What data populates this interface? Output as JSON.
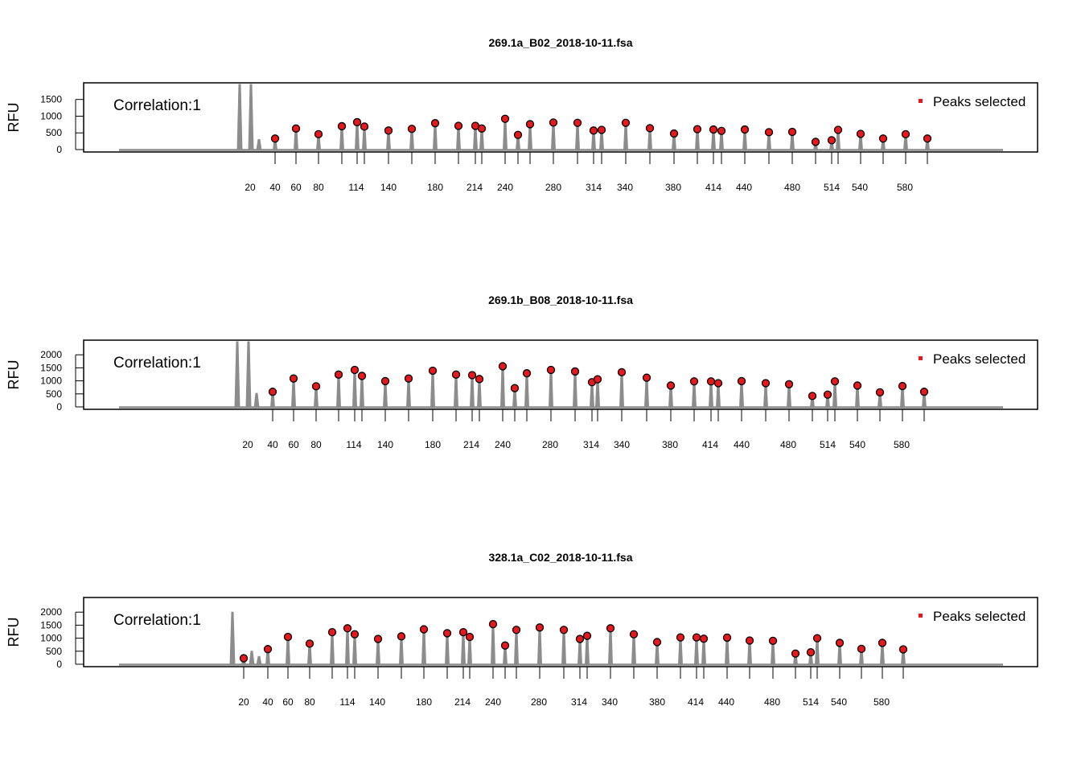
{
  "chart_data": [
    {
      "type": "line",
      "title": "269.1a_B02_2018-10-11.fsa",
      "ylabel": "RFU",
      "ylim": [
        0,
        1950
      ],
      "yticks": [
        0,
        500,
        1000,
        1500
      ],
      "xticks": [
        "20",
        "40",
        "60",
        "80",
        "114",
        "140",
        "180",
        "214",
        "240",
        "280",
        "314",
        "340",
        "380",
        "414",
        "440",
        "480",
        "514",
        "540",
        "580"
      ],
      "annotation": "Correlation:1",
      "legend": {
        "label": "Peaks selected",
        "color": "#e8191d",
        "position": "top-right"
      },
      "trace_color": "#8c8c8c",
      "primer_peaks": [
        1950,
        1950,
        300
      ],
      "peaks": [
        {
          "label": "20",
          "rfu": 330
        },
        {
          "label": "40",
          "rfu": 630
        },
        {
          "label": "60",
          "rfu": 460
        },
        {
          "label": "80",
          "rfu": 700
        },
        {
          "label": "100",
          "rfu": 820
        },
        {
          "label": "114",
          "rfu": 690
        },
        {
          "label": "120",
          "rfu": 570
        },
        {
          "label": "140",
          "rfu": 620
        },
        {
          "label": "160",
          "rfu": 790
        },
        {
          "label": "180",
          "rfu": 710
        },
        {
          "label": "200",
          "rfu": 710
        },
        {
          "label": "214",
          "rfu": 630
        },
        {
          "label": "220",
          "rfu": 920
        },
        {
          "label": "240",
          "rfu": 440
        },
        {
          "label": "250",
          "rfu": 760
        },
        {
          "label": "260",
          "rfu": 810
        },
        {
          "label": "280",
          "rfu": 800
        },
        {
          "label": "300",
          "rfu": 570
        },
        {
          "label": "314",
          "rfu": 590
        },
        {
          "label": "320",
          "rfu": 800
        },
        {
          "label": "340",
          "rfu": 640
        },
        {
          "label": "360",
          "rfu": 480
        },
        {
          "label": "380",
          "rfu": 610
        },
        {
          "label": "400",
          "rfu": 600
        },
        {
          "label": "414",
          "rfu": 560
        },
        {
          "label": "420",
          "rfu": 600
        },
        {
          "label": "440",
          "rfu": 520
        },
        {
          "label": "460",
          "rfu": 530
        },
        {
          "label": "480",
          "rfu": 230
        },
        {
          "label": "500",
          "rfu": 280
        },
        {
          "label": "514",
          "rfu": 590
        },
        {
          "label": "520",
          "rfu": 470
        },
        {
          "label": "540",
          "rfu": 330
        },
        {
          "label": "560",
          "rfu": 460
        },
        {
          "label": "580",
          "rfu": 330
        }
      ]
    },
    {
      "type": "line",
      "title": "269.1b_B08_2018-10-11.fsa",
      "ylabel": "RFU",
      "ylim": [
        0,
        2500
      ],
      "yticks": [
        0,
        500,
        1000,
        1500,
        2000
      ],
      "xticks": [
        "20",
        "40",
        "60",
        "80",
        "114",
        "140",
        "180",
        "214",
        "240",
        "280",
        "314",
        "340",
        "380",
        "414",
        "440",
        "480",
        "514",
        "540",
        "580"
      ],
      "annotation": "Correlation:1",
      "legend": {
        "label": "Peaks selected",
        "color": "#e8191d",
        "position": "top-right"
      },
      "trace_color": "#8c8c8c",
      "primer_peaks": [
        2500,
        2500,
        520
      ],
      "peaks": [
        {
          "label": "20",
          "rfu": 580
        },
        {
          "label": "40",
          "rfu": 1090
        },
        {
          "label": "60",
          "rfu": 790
        },
        {
          "label": "80",
          "rfu": 1240
        },
        {
          "label": "100",
          "rfu": 1420
        },
        {
          "label": "114",
          "rfu": 1190
        },
        {
          "label": "120",
          "rfu": 990
        },
        {
          "label": "140",
          "rfu": 1090
        },
        {
          "label": "160",
          "rfu": 1390
        },
        {
          "label": "180",
          "rfu": 1240
        },
        {
          "label": "200",
          "rfu": 1220
        },
        {
          "label": "214",
          "rfu": 1070
        },
        {
          "label": "220",
          "rfu": 1560
        },
        {
          "label": "240",
          "rfu": 720
        },
        {
          "label": "250",
          "rfu": 1290
        },
        {
          "label": "260",
          "rfu": 1420
        },
        {
          "label": "280",
          "rfu": 1360
        },
        {
          "label": "300",
          "rfu": 950
        },
        {
          "label": "314",
          "rfu": 1060
        },
        {
          "label": "320",
          "rfu": 1330
        },
        {
          "label": "340",
          "rfu": 1120
        },
        {
          "label": "360",
          "rfu": 820
        },
        {
          "label": "380",
          "rfu": 980
        },
        {
          "label": "400",
          "rfu": 980
        },
        {
          "label": "414",
          "rfu": 910
        },
        {
          "label": "420",
          "rfu": 990
        },
        {
          "label": "440",
          "rfu": 910
        },
        {
          "label": "460",
          "rfu": 870
        },
        {
          "label": "480",
          "rfu": 420
        },
        {
          "label": "500",
          "rfu": 470
        },
        {
          "label": "514",
          "rfu": 980
        },
        {
          "label": "520",
          "rfu": 820
        },
        {
          "label": "540",
          "rfu": 560
        },
        {
          "label": "560",
          "rfu": 800
        },
        {
          "label": "580",
          "rfu": 580
        }
      ]
    },
    {
      "type": "line",
      "title": "328.1a_C02_2018-10-11.fsa",
      "ylabel": "RFU",
      "ylim": [
        0,
        2500
      ],
      "yticks": [
        0,
        500,
        1000,
        1500,
        2000
      ],
      "xticks": [
        "20",
        "40",
        "60",
        "80",
        "114",
        "140",
        "180",
        "214",
        "240",
        "280",
        "314",
        "340",
        "380",
        "414",
        "440",
        "480",
        "514",
        "540",
        "580"
      ],
      "annotation": "Correlation:1",
      "legend": {
        "label": "Peaks selected",
        "color": "#e8191d",
        "position": "top-right"
      },
      "trace_color": "#8c8c8c",
      "primer_peaks": [
        2000,
        500,
        300
      ],
      "peaks": [
        {
          "label": "20",
          "rfu": 230
        },
        {
          "label": "40",
          "rfu": 580
        },
        {
          "label": "60",
          "rfu": 1050
        },
        {
          "label": "80",
          "rfu": 790
        },
        {
          "label": "100",
          "rfu": 1230
        },
        {
          "label": "114",
          "rfu": 1380
        },
        {
          "label": "120",
          "rfu": 1150
        },
        {
          "label": "140",
          "rfu": 970
        },
        {
          "label": "160",
          "rfu": 1070
        },
        {
          "label": "180",
          "rfu": 1340
        },
        {
          "label": "200",
          "rfu": 1190
        },
        {
          "label": "214",
          "rfu": 1230
        },
        {
          "label": "220",
          "rfu": 1050
        },
        {
          "label": "240",
          "rfu": 1540
        },
        {
          "label": "250",
          "rfu": 720
        },
        {
          "label": "260",
          "rfu": 1320
        },
        {
          "label": "280",
          "rfu": 1410
        },
        {
          "label": "300",
          "rfu": 1320
        },
        {
          "label": "314",
          "rfu": 970
        },
        {
          "label": "320",
          "rfu": 1090
        },
        {
          "label": "340",
          "rfu": 1380
        },
        {
          "label": "360",
          "rfu": 1150
        },
        {
          "label": "380",
          "rfu": 850
        },
        {
          "label": "400",
          "rfu": 1030
        },
        {
          "label": "414",
          "rfu": 1030
        },
        {
          "label": "420",
          "rfu": 980
        },
        {
          "label": "440",
          "rfu": 1020
        },
        {
          "label": "460",
          "rfu": 910
        },
        {
          "label": "480",
          "rfu": 900
        },
        {
          "label": "500",
          "rfu": 410
        },
        {
          "label": "514",
          "rfu": 460
        },
        {
          "label": "520",
          "rfu": 1000
        },
        {
          "label": "540",
          "rfu": 820
        },
        {
          "label": "560",
          "rfu": 590
        },
        {
          "label": "580",
          "rfu": 820
        },
        {
          "label": "600",
          "rfu": 570
        }
      ]
    }
  ]
}
